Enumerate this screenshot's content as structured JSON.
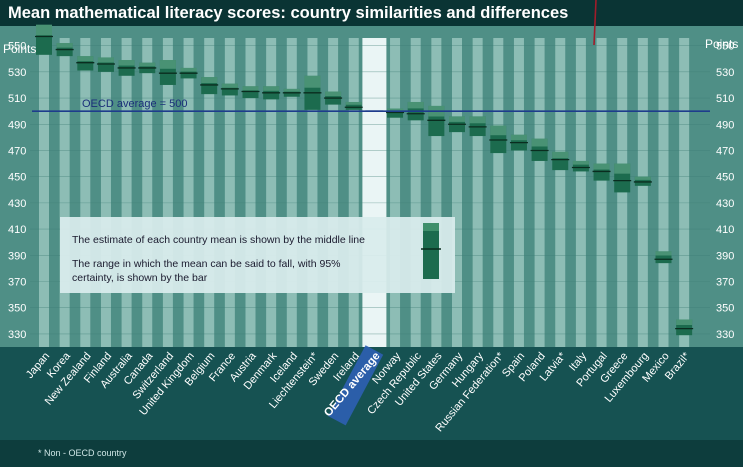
{
  "title": "Mean mathematical literacy scores: country similarities and differences",
  "footnote": "* Non - OECD country",
  "legend": {
    "line1": "The estimate of each country mean is shown by the middle line",
    "line2a": "The range in which the mean can be said to fall, with 95%",
    "line2b": "certainty, is shown by the bar"
  },
  "colors": {
    "background": "#0d3d3d",
    "plot": "#4f8f86",
    "stripe": "#9fcac3",
    "bar": "#1c6b4e",
    "bar_light": "#6fb394",
    "avg_line": "#1e3c8c",
    "oecd_highlight": "#f2fbfb",
    "oecd_label_bg": "#2d5fb3"
  },
  "chart_data": {
    "type": "range-bar",
    "y_unit_label": "Points",
    "ylim": [
      320,
      565
    ],
    "yticks": [
      330,
      350,
      370,
      390,
      410,
      430,
      450,
      470,
      490,
      510,
      530,
      550
    ],
    "right_yticks": [
      330,
      350,
      370,
      390,
      410,
      430,
      450,
      470,
      490,
      510,
      530,
      550
    ],
    "reference_line": {
      "label": "OECD average = 500",
      "value": 500
    },
    "categories": [
      "Japan",
      "Korea",
      "New Zealand",
      "Finland",
      "Australia",
      "Canada",
      "Switzerland",
      "United Kingdom",
      "Belgium",
      "France",
      "Austria",
      "Denmark",
      "Iceland",
      "Liechtenstein*",
      "Sweden",
      "Ireland",
      "OECD average",
      "Norway",
      "Czech Republic",
      "United States",
      "Germany",
      "Hungary",
      "Russian Federation*",
      "Spain",
      "Poland",
      "Latvia*",
      "Italy",
      "Portugal",
      "Greece",
      "Luxembourg",
      "Mexico",
      "Brazil*"
    ],
    "means": [
      557,
      547,
      537,
      536,
      533,
      533,
      529,
      529,
      520,
      517,
      515,
      514,
      514,
      514,
      510,
      503,
      500,
      499,
      498,
      493,
      490,
      488,
      478,
      476,
      470,
      463,
      457,
      454,
      447,
      446,
      387,
      334
    ],
    "low": [
      543,
      542,
      531,
      530,
      527,
      529,
      520,
      525,
      513,
      512,
      510,
      509,
      511,
      501,
      505,
      501,
      500,
      495,
      493,
      481,
      484,
      481,
      468,
      470,
      462,
      455,
      454,
      447,
      438,
      443,
      384,
      329
    ],
    "high": [
      566,
      552,
      542,
      541,
      539,
      537,
      539,
      533,
      526,
      521,
      519,
      519,
      517,
      527,
      515,
      507,
      500,
      502,
      507,
      504,
      496,
      496,
      489,
      482,
      479,
      469,
      462,
      460,
      460,
      450,
      393,
      341
    ]
  }
}
